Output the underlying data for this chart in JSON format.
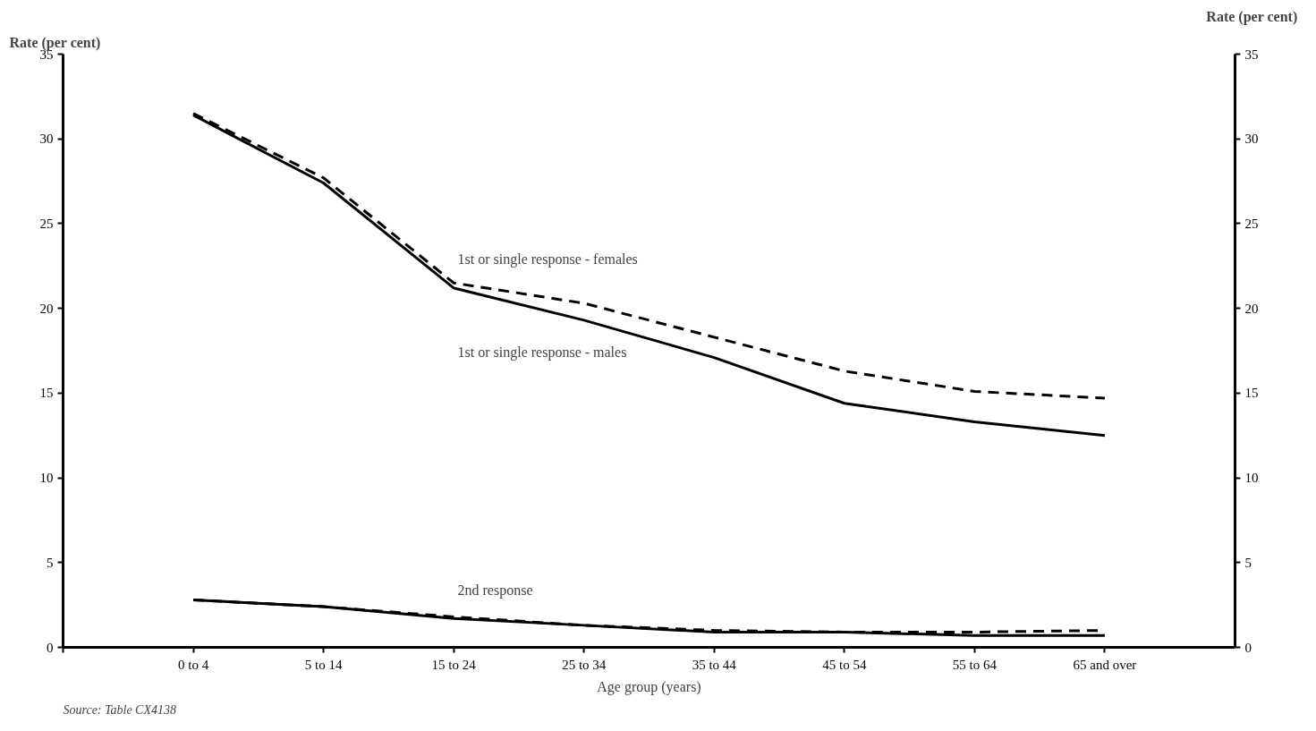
{
  "chart_data": {
    "type": "line",
    "xlabel": "Age group (years)",
    "ylabel": "Rate (per cent)",
    "y2label": "Rate (per cent)",
    "categories": [
      "0 to 4",
      "5 to 14",
      "15 to 24",
      "25 to 34",
      "35 to 44",
      "45 to 54",
      "55 to 64",
      "65 and over"
    ],
    "ylim": [
      0,
      35
    ],
    "yticks": [
      0,
      5,
      10,
      15,
      20,
      25,
      30,
      35
    ],
    "y2lim": [
      0,
      35
    ],
    "y2ticks": [
      0,
      5,
      10,
      15,
      20,
      25,
      30,
      35
    ],
    "grid": false,
    "marker": "none",
    "series": [
      {
        "name": "1st or single response - females",
        "color": "#000000",
        "line_style": "dashed",
        "values": [
          31.5,
          27.7,
          21.5,
          20.3,
          18.3,
          16.3,
          15.1,
          14.7
        ]
      },
      {
        "name": "1st or single response - males",
        "color": "#000000",
        "line_style": "solid",
        "values": [
          31.4,
          27.4,
          21.2,
          19.3,
          17.1,
          14.4,
          13.3,
          12.5
        ]
      },
      {
        "name": "2nd response",
        "color": "#000000",
        "line_style": "dashed",
        "values": [
          2.8,
          2.4,
          1.8,
          1.3,
          1.0,
          0.9,
          0.9,
          1.0
        ]
      },
      {
        "color": "#000000",
        "line_style": "solid",
        "values": [
          2.8,
          2.4,
          1.7,
          1.3,
          0.9,
          0.9,
          0.7,
          0.7
        ]
      }
    ],
    "annotations": [
      "Source: Table CX4138"
    ]
  }
}
